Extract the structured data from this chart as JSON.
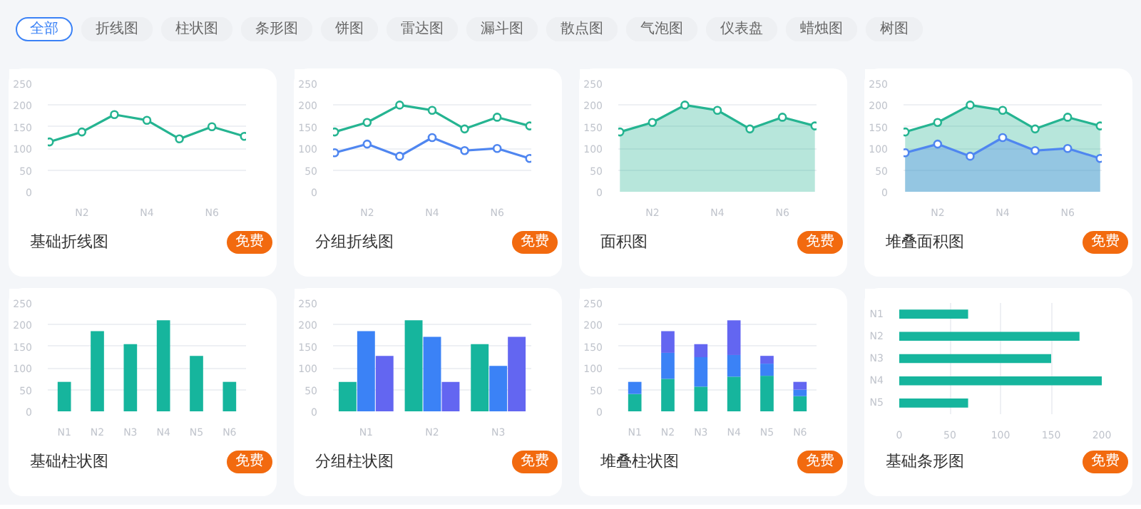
{
  "chart_data": [
    {
      "type": "line",
      "title": "基础折线图",
      "annotations": [
        "免费"
      ],
      "categories": [
        null,
        "N2",
        null,
        "N4",
        null,
        "N6",
        null
      ],
      "marker": "circle",
      "grid": "y",
      "ylim": [
        0,
        250
      ],
      "yticks": [
        0,
        50,
        100,
        150,
        200,
        250
      ],
      "series": [
        {
          "color": "#25b491",
          "values": [
            115,
            138,
            178,
            165,
            122,
            150,
            128
          ]
        }
      ]
    },
    {
      "type": "line",
      "title": "分组折线图",
      "annotations": [
        "免费"
      ],
      "categories": [
        null,
        "N2",
        null,
        "N4",
        null,
        "N6",
        null
      ],
      "marker": "circle",
      "grid": "y",
      "ylim": [
        0,
        250
      ],
      "yticks": [
        0,
        50,
        100,
        150,
        200,
        250
      ],
      "series": [
        {
          "color": "#25b491",
          "values": [
            138,
            160,
            200,
            188,
            145,
            172,
            152
          ]
        },
        {
          "color": "#4f86f0",
          "values": [
            90,
            110,
            82,
            125,
            95,
            100,
            77
          ]
        }
      ]
    },
    {
      "type": "area",
      "title": "面积图",
      "annotations": [
        "免费"
      ],
      "categories": [
        null,
        "N2",
        null,
        "N4",
        null,
        "N6",
        null
      ],
      "marker": "circle",
      "grid": "y",
      "ylim": [
        0,
        250
      ],
      "yticks": [
        0,
        50,
        100,
        150,
        200,
        250
      ],
      "series": [
        {
          "color": "#25b491",
          "values": [
            138,
            160,
            200,
            188,
            145,
            172,
            152
          ]
        }
      ]
    },
    {
      "type": "area",
      "title": "堆叠面积图",
      "annotations": [
        "免费"
      ],
      "categories": [
        null,
        "N2",
        null,
        "N4",
        null,
        "N6",
        null
      ],
      "marker": "circle",
      "grid": "y",
      "ylim": [
        0,
        250
      ],
      "yticks": [
        0,
        50,
        100,
        150,
        200,
        250
      ],
      "series": [
        {
          "color": "#25b491",
          "values": [
            138,
            160,
            200,
            188,
            145,
            172,
            152
          ]
        },
        {
          "color": "#4f86f0",
          "values": [
            90,
            110,
            82,
            125,
            95,
            100,
            77
          ]
        }
      ]
    },
    {
      "type": "bar",
      "title": "基础柱状图",
      "annotations": [
        "免费"
      ],
      "categories": [
        "N1",
        "N2",
        "N3",
        "N4",
        "N5",
        "N6"
      ],
      "grid": "y",
      "ylim": [
        0,
        250
      ],
      "yticks": [
        0,
        50,
        100,
        150,
        200,
        250
      ],
      "series": [
        {
          "color": "#16b59d",
          "values": [
            68,
            185,
            155,
            210,
            128,
            68
          ]
        }
      ]
    },
    {
      "type": "bar",
      "title": "分组柱状图",
      "annotations": [
        "免费"
      ],
      "categories": [
        "N1",
        "N2",
        "N3"
      ],
      "grid": "y",
      "ylim": [
        0,
        250
      ],
      "yticks": [
        0,
        50,
        100,
        150,
        200,
        250
      ],
      "series": [
        {
          "color": "#16b59d",
          "values": [
            68,
            210,
            155
          ]
        },
        {
          "color": "#3b82f6",
          "values": [
            185,
            172,
            105
          ]
        },
        {
          "color": "#6366f1",
          "values": [
            128,
            68,
            172
          ]
        }
      ]
    },
    {
      "type": "bar",
      "title": "堆叠柱状图",
      "stacked": true,
      "annotations": [
        "免费"
      ],
      "categories": [
        "N1",
        "N2",
        "N3",
        "N4",
        "N5",
        "N6"
      ],
      "grid": "y",
      "ylim": [
        0,
        250
      ],
      "yticks": [
        0,
        50,
        100,
        150,
        200,
        250
      ],
      "series": [
        {
          "color": "#16b59d",
          "values": [
            40,
            75,
            57,
            80,
            82,
            35
          ]
        },
        {
          "color": "#3b82f6",
          "values": [
            28,
            60,
            68,
            50,
            28,
            15
          ]
        },
        {
          "color": "#6366f1",
          "values": [
            0,
            50,
            30,
            80,
            18,
            18
          ]
        }
      ]
    },
    {
      "type": "bar",
      "title": "基础条形图",
      "orientation": "horizontal",
      "annotations": [
        "免费"
      ],
      "categories": [
        "N1",
        "N2",
        "N3",
        "N4",
        "N5"
      ],
      "grid": "x",
      "xlim": [
        0,
        200
      ],
      "xticks": [
        0,
        50,
        100,
        150,
        200
      ],
      "series": [
        {
          "color": "#16b59d",
          "values": [
            68,
            178,
            150,
            200,
            68
          ]
        }
      ]
    },
    {
      "type": "other",
      "annotations": [
        "全部",
        "折线图",
        "柱状图",
        "条形图",
        "饼图",
        "雷达图",
        "漏斗图",
        "散点图",
        "气泡图",
        "仪表盘",
        "蜡烛图",
        "树图"
      ]
    }
  ]
}
